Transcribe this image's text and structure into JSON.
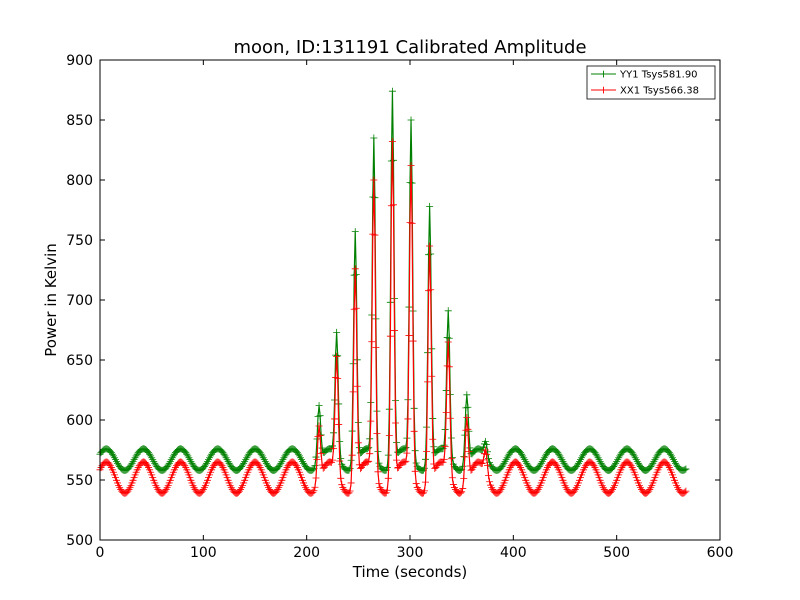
{
  "chart_data": {
    "type": "line",
    "title": "moon, ID:131191 Calibrated Amplitude",
    "xlabel": "Time (seconds)",
    "ylabel": "Power in Kelvin",
    "xlim": [
      0,
      600
    ],
    "ylim": [
      500,
      900
    ],
    "x_ticks": [
      0,
      100,
      200,
      300,
      400,
      500,
      600
    ],
    "y_ticks": [
      500,
      550,
      600,
      650,
      700,
      750,
      800,
      850,
      900
    ],
    "grid": false,
    "legend_position": "top-right",
    "marker": "+",
    "x_start": 0,
    "x_end": 567,
    "x_step": 1,
    "series": [
      {
        "name": "YY1 Tsys581.90",
        "color": "#008000",
        "baseline": 567,
        "oscillation_amplitude": 9,
        "oscillation_period": 36,
        "oscillation_phase_x": 6,
        "peaks": [
          {
            "x": 212,
            "y": 612
          },
          {
            "x": 229,
            "y": 673
          },
          {
            "x": 247,
            "y": 757
          },
          {
            "x": 265,
            "y": 835
          },
          {
            "x": 283,
            "y": 874
          },
          {
            "x": 301,
            "y": 850
          },
          {
            "x": 319,
            "y": 778
          },
          {
            "x": 337,
            "y": 691
          },
          {
            "x": 355,
            "y": 621
          },
          {
            "x": 373,
            "y": 582
          }
        ]
      },
      {
        "name": "XX1 Tsys566.38",
        "color": "#ff0000",
        "baseline": 552,
        "oscillation_amplitude": 13,
        "oscillation_period": 36,
        "oscillation_phase_x": 6,
        "peaks": [
          {
            "x": 212,
            "y": 595
          },
          {
            "x": 229,
            "y": 653
          },
          {
            "x": 247,
            "y": 726
          },
          {
            "x": 265,
            "y": 800
          },
          {
            "x": 283,
            "y": 832
          },
          {
            "x": 301,
            "y": 812
          },
          {
            "x": 319,
            "y": 745
          },
          {
            "x": 337,
            "y": 665
          },
          {
            "x": 355,
            "y": 602
          },
          {
            "x": 373,
            "y": 575
          }
        ]
      }
    ]
  }
}
